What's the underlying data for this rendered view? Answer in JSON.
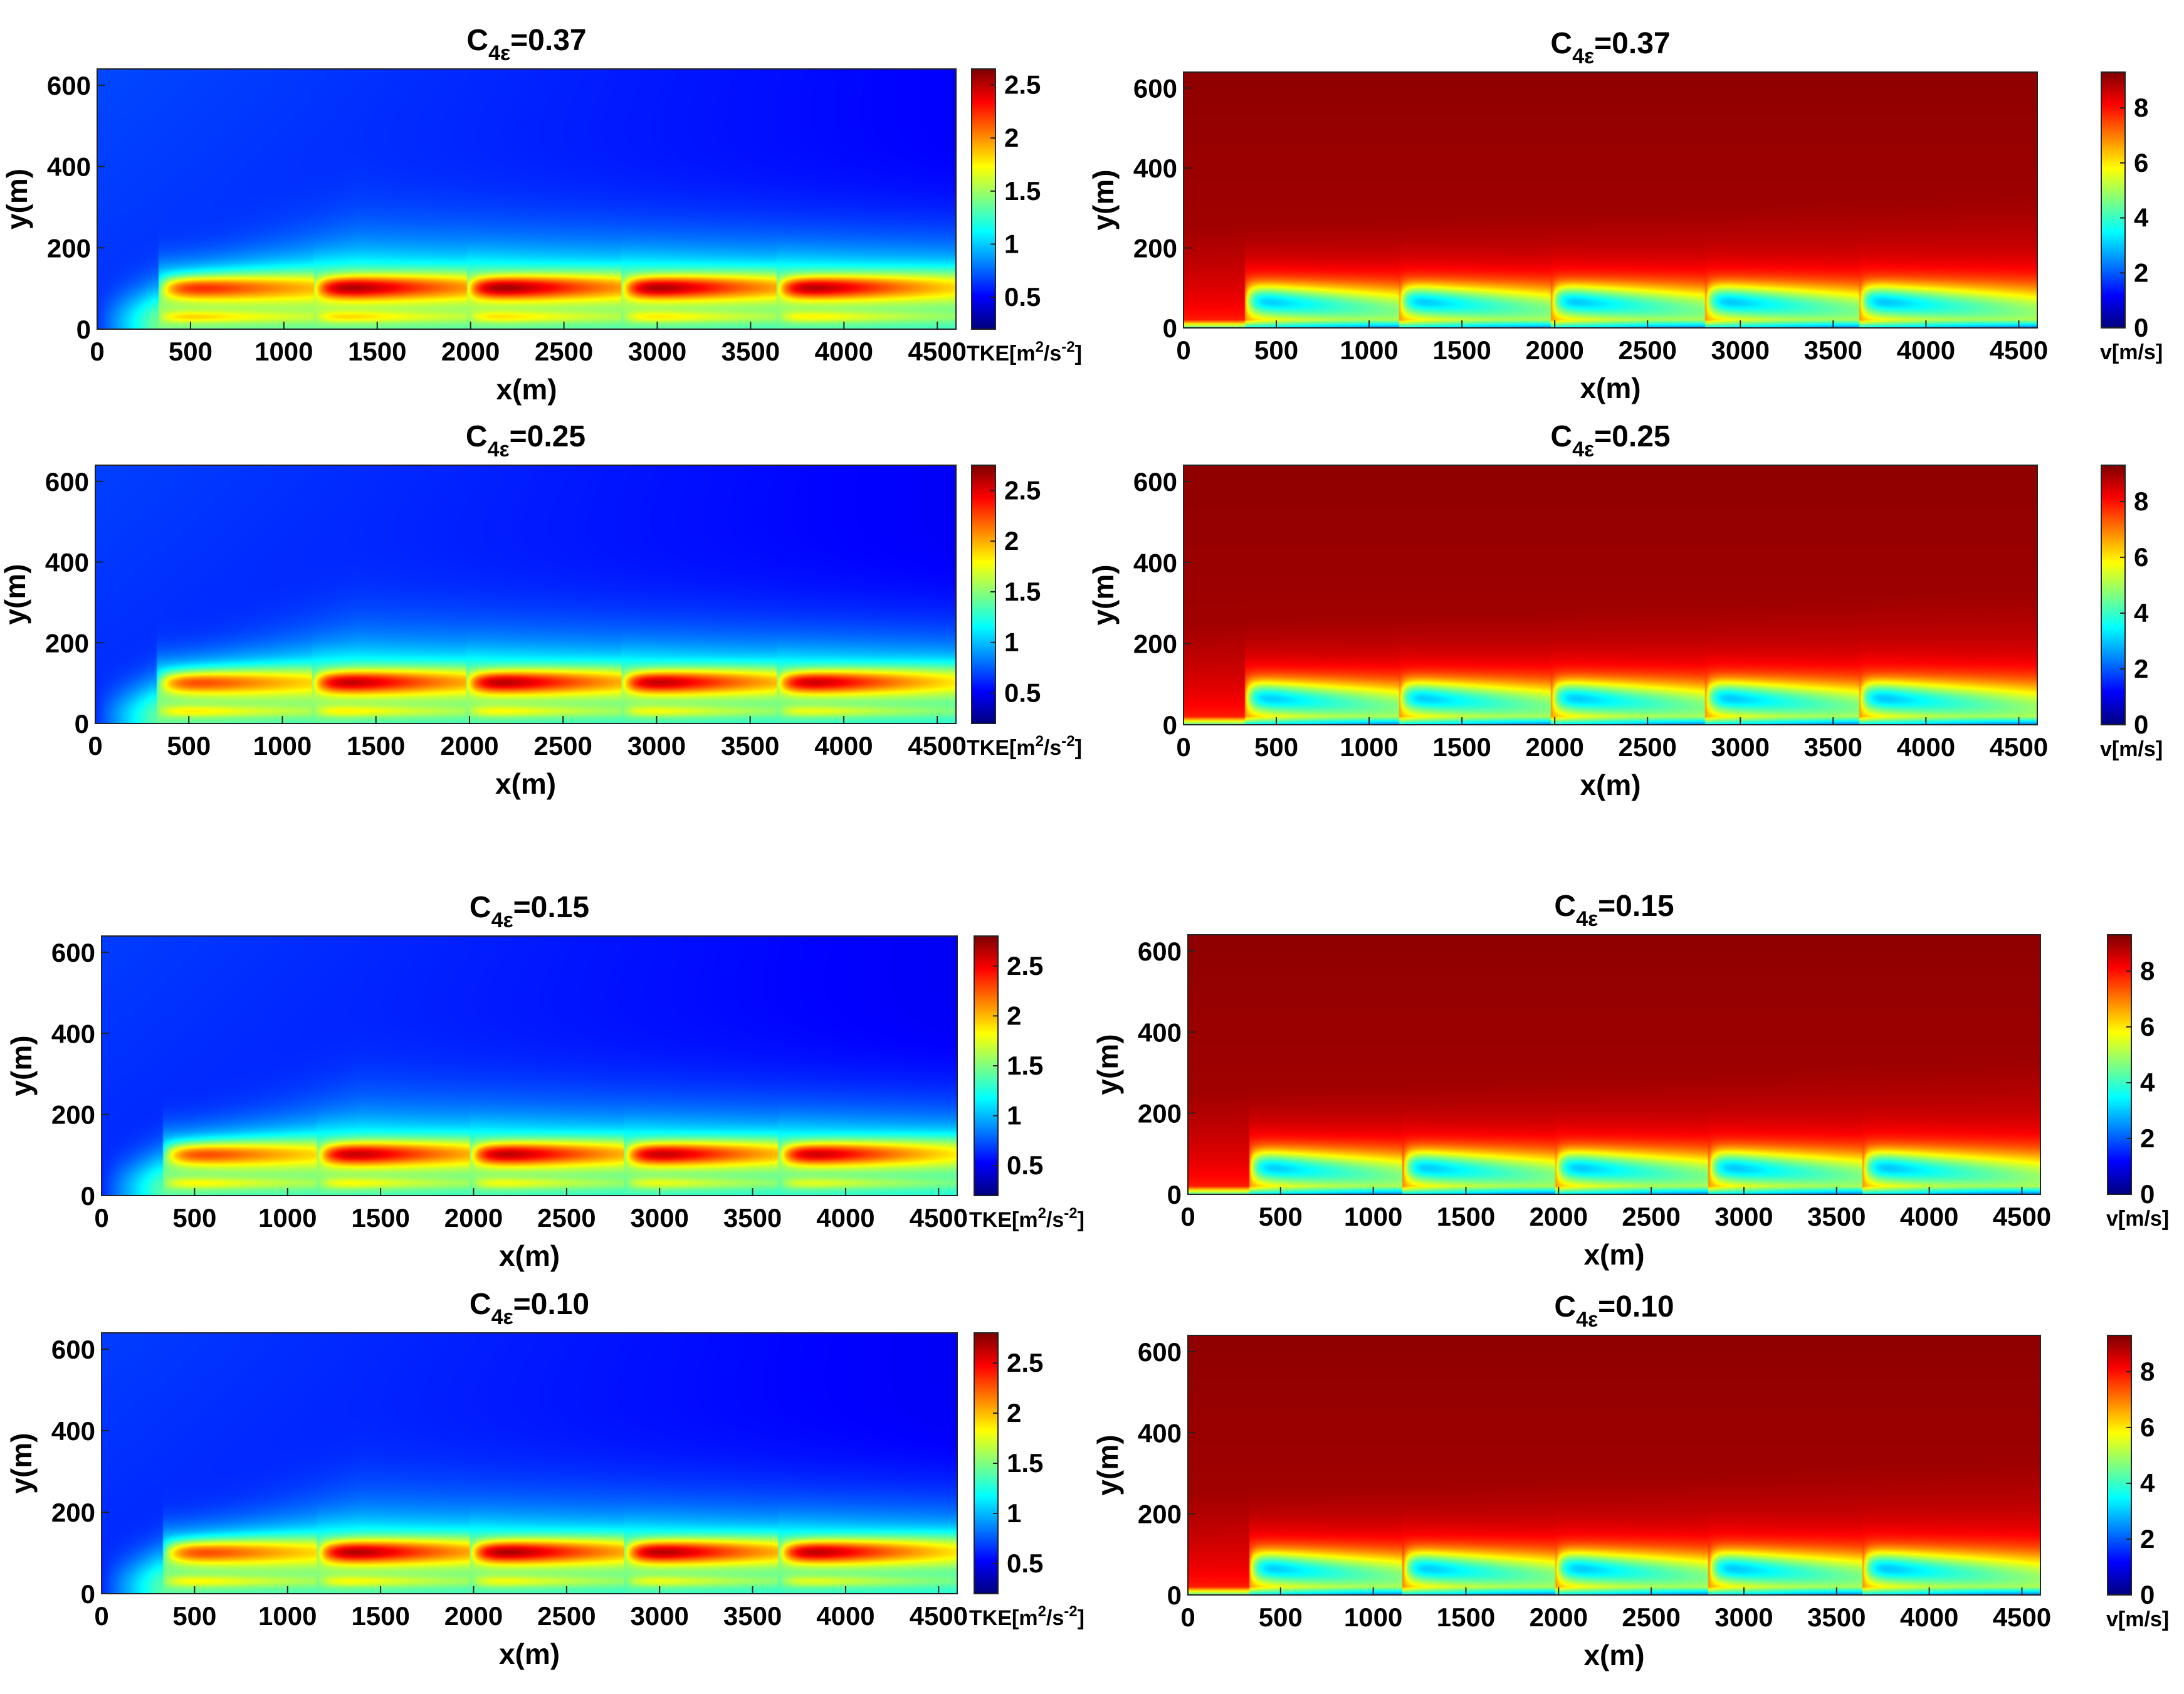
{
  "figure": {
    "colormap": "jet",
    "colors": {
      "jet_low": "#00008f",
      "jet_high": "#800000",
      "text": "#000000"
    }
  },
  "chart_data": [
    {
      "id": "tke-037",
      "type": "heatmap",
      "field": "tke",
      "title_main": "C",
      "title_sub": "4ε",
      "title_value": "=0.37",
      "xlabel": "x(m)",
      "ylabel": "y(m)",
      "xlim": [
        0,
        4600
      ],
      "ylim": [
        0,
        640
      ],
      "xticks": [
        "0",
        "500",
        "1000",
        "1500",
        "2000",
        "2500",
        "3000",
        "3500",
        "4000",
        "4500"
      ],
      "yticks": [
        "0",
        "200",
        "400",
        "600"
      ],
      "colorbar": {
        "min": 0.2,
        "max": 2.65,
        "ticks": [
          "0.5",
          "1",
          "1.5",
          "2",
          "2.5"
        ],
        "label": "TKE[m",
        "label_sup1": "2",
        "label_mid": "/s",
        "label_sup2": "-2",
        "label_end": "]"
      },
      "turbine_x": [
        330,
        1160,
        1980,
        2810,
        3640
      ],
      "hub_height": 100,
      "wake_peak": [
        2.4,
        2.55,
        2.6,
        2.6,
        2.6
      ]
    },
    {
      "id": "vel-037",
      "type": "heatmap",
      "field": "velocity",
      "title_main": "C",
      "title_sub": "4ε",
      "title_value": "=0.37",
      "xlabel": "x(m)",
      "ylabel": "y(m)",
      "xlim": [
        0,
        4600
      ],
      "ylim": [
        0,
        640
      ],
      "xticks": [
        "0",
        "500",
        "1000",
        "1500",
        "2000",
        "2500",
        "3000",
        "3500",
        "4000",
        "4500"
      ],
      "yticks": [
        "0",
        "200",
        "400",
        "600"
      ],
      "colorbar": {
        "min": 0,
        "max": 9.3,
        "ticks": [
          "0",
          "2",
          "4",
          "6",
          "8"
        ],
        "label": "v[m/s]"
      },
      "turbine_x": [
        330,
        1160,
        1980,
        2810,
        3640
      ],
      "hub_height": 100,
      "freestream": 8.9
    },
    {
      "id": "tke-025",
      "type": "heatmap",
      "field": "tke",
      "title_main": "C",
      "title_sub": "4ε",
      "title_value": "=0.25",
      "xlabel": "x(m)",
      "ylabel": "y(m)",
      "xlim": [
        0,
        4600
      ],
      "ylim": [
        0,
        640
      ],
      "xticks": [
        "0",
        "500",
        "1000",
        "1500",
        "2000",
        "2500",
        "3000",
        "3500",
        "4000",
        "4500"
      ],
      "yticks": [
        "0",
        "200",
        "400",
        "600"
      ],
      "colorbar": {
        "min": 0.2,
        "max": 2.75,
        "ticks": [
          "0.5",
          "1",
          "1.5",
          "2",
          "2.5"
        ],
        "label": "TKE[m",
        "label_sup1": "2",
        "label_mid": "/s",
        "label_sup2": "-2",
        "label_end": "]"
      },
      "turbine_x": [
        330,
        1160,
        1980,
        2810,
        3640
      ],
      "hub_height": 100,
      "wake_peak": [
        2.4,
        2.6,
        2.65,
        2.65,
        2.65
      ]
    },
    {
      "id": "vel-025",
      "type": "heatmap",
      "field": "velocity",
      "title_main": "C",
      "title_sub": "4ε",
      "title_value": "=0.25",
      "xlabel": "x(m)",
      "ylabel": "y(m)",
      "xlim": [
        0,
        4600
      ],
      "ylim": [
        0,
        640
      ],
      "xticks": [
        "0",
        "500",
        "1000",
        "1500",
        "2000",
        "2500",
        "3000",
        "3500",
        "4000",
        "4500"
      ],
      "yticks": [
        "0",
        "200",
        "400",
        "600"
      ],
      "colorbar": {
        "min": 0,
        "max": 9.3,
        "ticks": [
          "0",
          "2",
          "4",
          "6",
          "8"
        ],
        "label": "v[m/s]"
      },
      "turbine_x": [
        330,
        1160,
        1980,
        2810,
        3640
      ],
      "hub_height": 100,
      "freestream": 8.9
    },
    {
      "id": "tke-015",
      "type": "heatmap",
      "field": "tke",
      "title_main": "C",
      "title_sub": "4ε",
      "title_value": "=0.15",
      "xlabel": "x(m)",
      "ylabel": "y(m)",
      "xlim": [
        0,
        4600
      ],
      "ylim": [
        0,
        640
      ],
      "xticks": [
        "0",
        "500",
        "1000",
        "1500",
        "2000",
        "2500",
        "3000",
        "3500",
        "4000",
        "4500"
      ],
      "yticks": [
        "0",
        "200",
        "400",
        "600"
      ],
      "colorbar": {
        "min": 0.2,
        "max": 2.8,
        "ticks": [
          "0.5",
          "1",
          "1.5",
          "2",
          "2.5"
        ],
        "label": "TKE[m",
        "label_sup1": "2",
        "label_mid": "/s",
        "label_sup2": "-2",
        "label_end": "]"
      },
      "turbine_x": [
        330,
        1160,
        1980,
        2810,
        3640
      ],
      "hub_height": 100,
      "wake_peak": [
        2.45,
        2.65,
        2.7,
        2.7,
        2.7
      ]
    },
    {
      "id": "vel-015",
      "type": "heatmap",
      "field": "velocity",
      "title_main": "C",
      "title_sub": "4ε",
      "title_value": "=0.15",
      "xlabel": "x(m)",
      "ylabel": "y(m)",
      "xlim": [
        0,
        4600
      ],
      "ylim": [
        0,
        640
      ],
      "xticks": [
        "0",
        "500",
        "1000",
        "1500",
        "2000",
        "2500",
        "3000",
        "3500",
        "4000",
        "4500"
      ],
      "yticks": [
        "0",
        "200",
        "400",
        "600"
      ],
      "colorbar": {
        "min": 0,
        "max": 9.3,
        "ticks": [
          "0",
          "2",
          "4",
          "6",
          "8"
        ],
        "label": "v[m/s]"
      },
      "turbine_x": [
        330,
        1160,
        1980,
        2810,
        3640
      ],
      "hub_height": 100,
      "freestream": 8.9
    },
    {
      "id": "tke-010",
      "type": "heatmap",
      "field": "tke",
      "title_main": "C",
      "title_sub": "4ε",
      "title_value": "=0.10",
      "xlabel": "x(m)",
      "ylabel": "y(m)",
      "xlim": [
        0,
        4600
      ],
      "ylim": [
        0,
        640
      ],
      "xticks": [
        "0",
        "500",
        "1000",
        "1500",
        "2000",
        "2500",
        "3000",
        "3500",
        "4000",
        "4500"
      ],
      "yticks": [
        "0",
        "200",
        "400",
        "600"
      ],
      "colorbar": {
        "min": 0.2,
        "max": 2.8,
        "ticks": [
          "0.5",
          "1",
          "1.5",
          "2",
          "2.5"
        ],
        "label": "TKE[m",
        "label_sup1": "2",
        "label_mid": "/s",
        "label_sup2": "-2",
        "label_end": "]"
      },
      "turbine_x": [
        330,
        1160,
        1980,
        2810,
        3640
      ],
      "hub_height": 100,
      "wake_peak": [
        2.45,
        2.7,
        2.75,
        2.75,
        2.75
      ]
    },
    {
      "id": "vel-010",
      "type": "heatmap",
      "field": "velocity",
      "title_main": "C",
      "title_sub": "4ε",
      "title_value": "=0.10",
      "xlabel": "x(m)",
      "ylabel": "y(m)",
      "xlim": [
        0,
        4600
      ],
      "ylim": [
        0,
        640
      ],
      "xticks": [
        "0",
        "500",
        "1000",
        "1500",
        "2000",
        "2500",
        "3000",
        "3500",
        "4000",
        "4500"
      ],
      "yticks": [
        "0",
        "200",
        "400",
        "600"
      ],
      "colorbar": {
        "min": 0,
        "max": 9.3,
        "ticks": [
          "0",
          "2",
          "4",
          "6",
          "8"
        ],
        "label": "v[m/s]"
      },
      "turbine_x": [
        330,
        1160,
        1980,
        2810,
        3640
      ],
      "hub_height": 100,
      "freestream": 8.9
    }
  ]
}
